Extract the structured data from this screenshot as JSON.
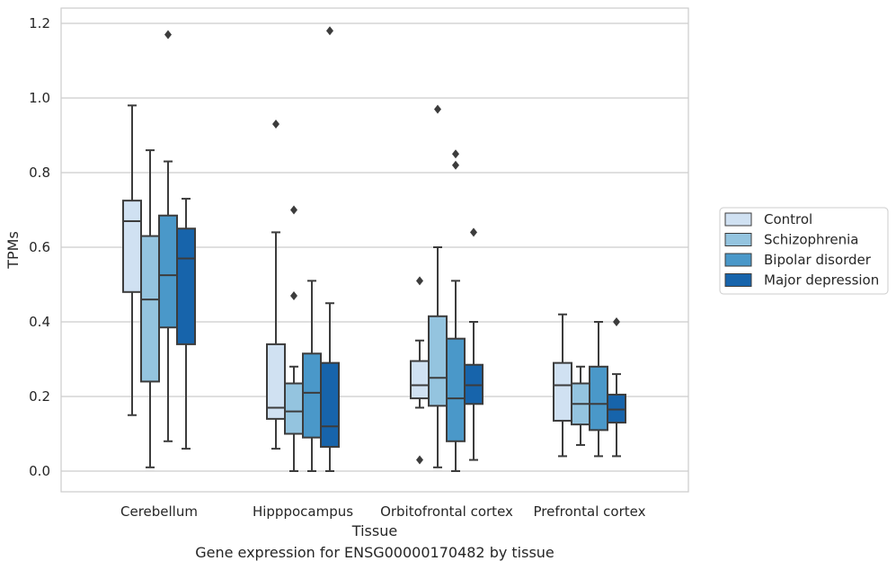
{
  "chart_data": {
    "type": "box",
    "xlabel": "Tissue",
    "ylabel": "TPMs",
    "ylim": [
      -0.055,
      1.24
    ],
    "yticks": [
      "0.0",
      "0.2",
      "0.4",
      "0.6",
      "0.8",
      "1.0",
      "1.2"
    ],
    "categories": [
      "Cerebellum",
      "Hipppocampus",
      "Orbitofrontal cortex",
      "Prefrontal cortex"
    ],
    "grid": "horizontal",
    "legend_position": "right",
    "series": [
      {
        "name": "Control",
        "color": "#d0e1f2",
        "boxes": [
          {
            "whislo": 0.15,
            "q1": 0.48,
            "med": 0.67,
            "q3": 0.725,
            "whishi": 0.98,
            "fliers": []
          },
          {
            "whislo": 0.06,
            "q1": 0.14,
            "med": 0.17,
            "q3": 0.34,
            "whishi": 0.64,
            "fliers": [
              0.93
            ]
          },
          {
            "whislo": 0.17,
            "q1": 0.195,
            "med": 0.23,
            "q3": 0.295,
            "whishi": 0.35,
            "fliers": [
              0.51,
              0.03
            ]
          },
          {
            "whislo": 0.04,
            "q1": 0.135,
            "med": 0.23,
            "q3": 0.29,
            "whishi": 0.42,
            "fliers": []
          }
        ]
      },
      {
        "name": "Schizophrenia",
        "color": "#94c4df",
        "boxes": [
          {
            "whislo": 0.01,
            "q1": 0.24,
            "med": 0.46,
            "q3": 0.63,
            "whishi": 0.86,
            "fliers": []
          },
          {
            "whislo": 0.0,
            "q1": 0.1,
            "med": 0.16,
            "q3": 0.235,
            "whishi": 0.28,
            "fliers": [
              0.47,
              0.7
            ]
          },
          {
            "whislo": 0.01,
            "q1": 0.175,
            "med": 0.25,
            "q3": 0.415,
            "whishi": 0.6,
            "fliers": [
              0.97
            ]
          },
          {
            "whislo": 0.07,
            "q1": 0.125,
            "med": 0.18,
            "q3": 0.235,
            "whishi": 0.28,
            "fliers": []
          }
        ]
      },
      {
        "name": "Bipolar disorder",
        "color": "#4a98c9",
        "boxes": [
          {
            "whislo": 0.08,
            "q1": 0.385,
            "med": 0.525,
            "q3": 0.685,
            "whishi": 0.83,
            "fliers": [
              1.17
            ]
          },
          {
            "whislo": 0.0,
            "q1": 0.09,
            "med": 0.21,
            "q3": 0.315,
            "whishi": 0.51,
            "fliers": []
          },
          {
            "whislo": 0.0,
            "q1": 0.08,
            "med": 0.195,
            "q3": 0.355,
            "whishi": 0.51,
            "fliers": [
              0.82,
              0.85
            ]
          },
          {
            "whislo": 0.04,
            "q1": 0.11,
            "med": 0.18,
            "q3": 0.28,
            "whishi": 0.4,
            "fliers": []
          }
        ]
      },
      {
        "name": "Major depression",
        "color": "#1764ab",
        "boxes": [
          {
            "whislo": 0.06,
            "q1": 0.34,
            "med": 0.57,
            "q3": 0.65,
            "whishi": 0.73,
            "fliers": []
          },
          {
            "whislo": 0.0,
            "q1": 0.065,
            "med": 0.12,
            "q3": 0.29,
            "whishi": 0.45,
            "fliers": [
              1.18
            ]
          },
          {
            "whislo": 0.03,
            "q1": 0.18,
            "med": 0.23,
            "q3": 0.285,
            "whishi": 0.4,
            "fliers": [
              0.64
            ]
          },
          {
            "whislo": 0.04,
            "q1": 0.13,
            "med": 0.165,
            "q3": 0.205,
            "whishi": 0.26,
            "fliers": [
              0.4
            ]
          }
        ]
      }
    ]
  },
  "caption": "Gene expression for ENSG00000170482 by tissue"
}
